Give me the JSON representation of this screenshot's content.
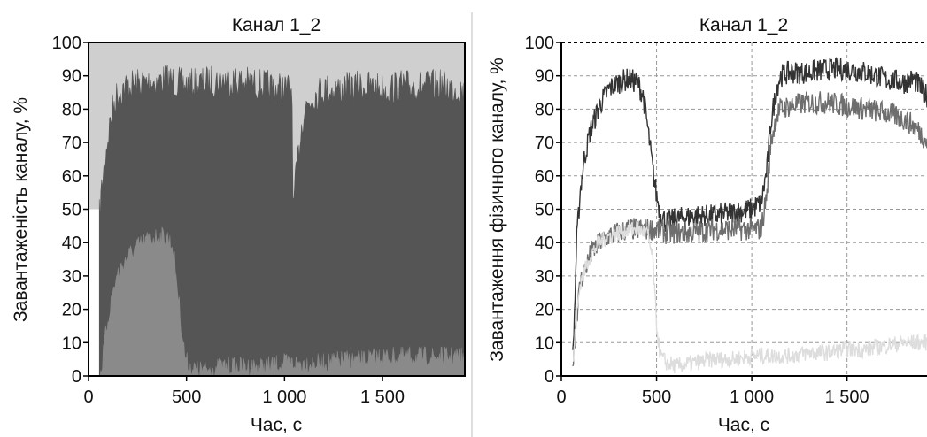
{
  "chart_data": [
    {
      "type": "area",
      "title": "Канал 1_2",
      "xlabel": "Час, с",
      "ylabel": "Завантаженість каналу, %",
      "xlim": [
        0,
        1920
      ],
      "ylim": [
        0,
        100
      ],
      "x_ticks": [
        0,
        500,
        1000,
        1500
      ],
      "x_tick_labels": [
        "0",
        "500",
        "1 000",
        "1 500"
      ],
      "y_ticks": [
        0,
        10,
        20,
        30,
        40,
        50,
        60,
        70,
        80,
        90,
        100
      ],
      "grid": false,
      "colors": {
        "background_upper": "#cfcfcf",
        "background_lower": "#ffffff",
        "series_dark": "#555555",
        "series_mid": "#8a8a8a"
      },
      "series": [
        {
          "color": "#555555",
          "x": [
            55,
            70,
            90,
            110,
            130,
            150,
            200,
            300,
            400,
            500,
            600,
            700,
            800,
            900,
            1000,
            1040,
            1041,
            1060,
            1080,
            1100,
            1150,
            1200,
            1300,
            1400,
            1500,
            1600,
            1700,
            1800,
            1900,
            1920
          ],
          "y": [
            50,
            60,
            70,
            78,
            84,
            87,
            89,
            90,
            91,
            89,
            90,
            91,
            90,
            89,
            88,
            88,
            50,
            62,
            74,
            82,
            86,
            88,
            88,
            89,
            88,
            89,
            89,
            89,
            88,
            86
          ]
        },
        {
          "color": "#8a8a8a",
          "x": [
            55,
            70,
            90,
            110,
            130,
            150,
            200,
            250,
            300,
            350,
            400,
            430,
            450,
            470,
            490,
            510,
            550,
            600,
            700,
            800,
            900,
            1000,
            1100,
            1200,
            1300,
            1400,
            1500,
            1600,
            1700,
            1800,
            1900,
            1920
          ],
          "y": [
            0,
            5,
            15,
            22,
            28,
            32,
            37,
            40,
            42,
            43,
            43,
            40,
            30,
            18,
            8,
            4,
            3,
            3,
            4,
            4,
            4,
            5,
            5,
            5,
            6,
            6,
            7,
            7,
            7,
            7,
            7,
            6
          ]
        }
      ]
    },
    {
      "type": "line",
      "title": "Канал 1_2",
      "xlabel": "Час, с",
      "ylabel": "Завантаження фізичного каналу, %",
      "xlim": [
        0,
        1920
      ],
      "ylim": [
        0,
        100
      ],
      "x_ticks": [
        0,
        500,
        1000,
        1500
      ],
      "x_tick_labels": [
        "0",
        "500",
        "1 000",
        "1 500"
      ],
      "y_ticks": [
        0,
        10,
        20,
        30,
        40,
        50,
        60,
        70,
        80,
        90,
        100
      ],
      "grid": true,
      "series": [
        {
          "color": "#333333",
          "x": [
            60,
            70,
            80,
            100,
            120,
            150,
            200,
            250,
            300,
            350,
            400,
            430,
            450,
            480,
            500,
            520,
            550,
            600,
            700,
            800,
            900,
            1000,
            1050,
            1080,
            1100,
            1130,
            1150,
            1200,
            1300,
            1400,
            1500,
            1600,
            1700,
            1800,
            1850,
            1920
          ],
          "y": [
            5,
            20,
            40,
            56,
            65,
            73,
            81,
            86,
            88,
            89,
            88,
            84,
            76,
            62,
            54,
            49,
            46,
            47,
            48,
            48,
            49,
            50,
            52,
            62,
            76,
            86,
            90,
            91,
            91,
            92,
            92,
            91,
            89,
            88,
            89,
            84
          ]
        },
        {
          "color": "#6e6e6e",
          "x": [
            60,
            80,
            100,
            150,
            200,
            250,
            300,
            350,
            400,
            450,
            500,
            550,
            600,
            700,
            800,
            900,
            1000,
            1050,
            1080,
            1100,
            1130,
            1150,
            1200,
            1300,
            1400,
            1500,
            1600,
            1700,
            1800,
            1850,
            1900,
            1920
          ],
          "y": [
            3,
            18,
            28,
            36,
            40,
            42,
            43,
            44,
            44,
            44,
            44,
            43,
            43,
            43,
            44,
            44,
            44,
            44,
            55,
            70,
            78,
            80,
            81,
            82,
            82,
            81,
            80,
            79,
            77,
            75,
            72,
            70
          ]
        },
        {
          "color": "#dddddd",
          "x": [
            60,
            80,
            100,
            150,
            200,
            250,
            300,
            350,
            400,
            450,
            480,
            500,
            520,
            550,
            600,
            700,
            800,
            900,
            1000,
            1100,
            1200,
            1300,
            1400,
            1500,
            1600,
            1700,
            1800,
            1900,
            1920
          ],
          "y": [
            3,
            18,
            28,
            36,
            40,
            42,
            43,
            44,
            44,
            43,
            35,
            15,
            6,
            4,
            3,
            4,
            5,
            5,
            6,
            6,
            6,
            7,
            7,
            8,
            8,
            9,
            10,
            10,
            10
          ]
        }
      ]
    }
  ]
}
